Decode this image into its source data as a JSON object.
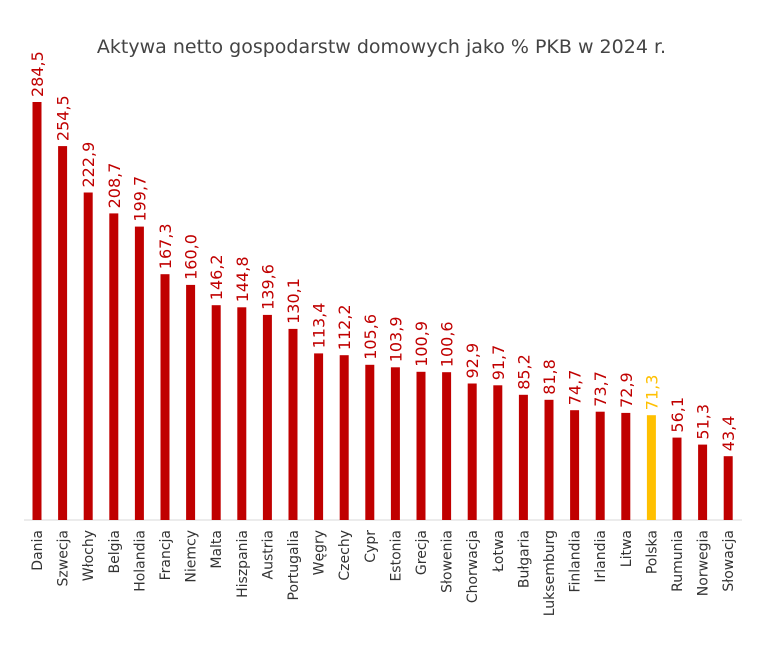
{
  "chart_data": {
    "type": "bar",
    "title": "Aktywa netto gospodarstw domowych jako % PKB w 2024 r.",
    "categories": [
      "Dania",
      "Szwecja",
      "Włochy",
      "Belgia",
      "Holandia",
      "Francja",
      "Niemcy",
      "Malta",
      "Hiszpania",
      "Austria",
      "Portugalia",
      "Węgry",
      "Czechy",
      "Cypr",
      "Estonia",
      "Grecja",
      "Słowenia",
      "Chorwacja",
      "Łotwa",
      "Bułgaria",
      "Luksemburg",
      "Finlandia",
      "Irlandia",
      "Litwa",
      "Polska",
      "Rumunia",
      "Norwegia",
      "Słowacja"
    ],
    "labels": [
      "284,5",
      "254,5",
      "222,9",
      "208,7",
      "199,7",
      "167,3",
      "160,0",
      "146,2",
      "144,8",
      "139,6",
      "130,1",
      "113,4",
      "112,2",
      "105,6",
      "103,9",
      "100,9",
      "100,6",
      "92,9",
      "91,7",
      "85,2",
      "81,8",
      "74,7",
      "73,7",
      "72,9",
      "71,3",
      "56,1",
      "51,3",
      "43,4"
    ],
    "values": [
      284.5,
      254.5,
      222.9,
      208.7,
      199.7,
      167.3,
      160.0,
      146.2,
      144.8,
      139.6,
      130.1,
      113.4,
      112.2,
      105.6,
      103.9,
      100.9,
      100.6,
      92.9,
      91.7,
      85.2,
      81.8,
      74.7,
      73.7,
      72.9,
      71.3,
      56.1,
      51.3,
      43.4
    ],
    "highlight_category": "Polska",
    "colors": {
      "bar": "#c00000",
      "highlight": "#ffc000",
      "label": "#c00000",
      "highlight_label": "#ffc000"
    },
    "xlabel": "",
    "ylabel": "",
    "grid": false,
    "legend": "none"
  }
}
